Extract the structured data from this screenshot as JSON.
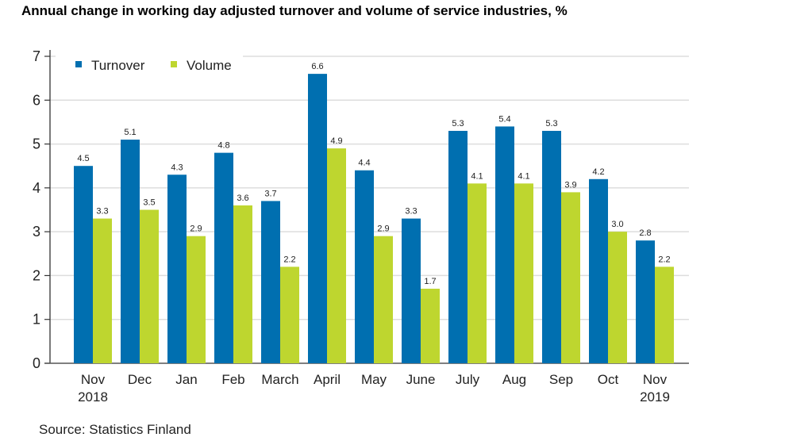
{
  "chart_data": {
    "type": "bar",
    "title": "Annual change in working day adjusted turnover and volume of service industries, %",
    "xlabel": "",
    "ylabel": "",
    "ylim": [
      0,
      7
    ],
    "yticks": [
      0,
      1,
      2,
      3,
      4,
      5,
      6,
      7
    ],
    "grid": true,
    "legend_position": "top-left",
    "categories": [
      [
        "Nov",
        "2018"
      ],
      [
        "Dec"
      ],
      [
        "Jan"
      ],
      [
        "Feb"
      ],
      [
        "March"
      ],
      [
        "April"
      ],
      [
        "May"
      ],
      [
        "June"
      ],
      [
        "July"
      ],
      [
        "Aug"
      ],
      [
        "Sep"
      ],
      [
        "Oct"
      ],
      [
        "Nov",
        "2019"
      ]
    ],
    "series": [
      {
        "name": "Turnover",
        "color": "#006fb0",
        "values": [
          4.5,
          5.1,
          4.3,
          4.8,
          3.7,
          6.6,
          4.4,
          3.3,
          5.3,
          5.4,
          5.3,
          4.2,
          2.8
        ],
        "labels": [
          "4.5",
          "5.1",
          "4.3",
          "4.8",
          "3.7",
          "6.6",
          "4.4",
          "3.3",
          "5.3",
          "5.4",
          "5.3",
          "4.2",
          "2.8"
        ]
      },
      {
        "name": "Volume",
        "color": "#bed62f",
        "values": [
          3.3,
          3.5,
          2.9,
          3.6,
          2.2,
          4.9,
          2.9,
          1.7,
          4.1,
          4.1,
          3.9,
          3.0,
          2.2
        ],
        "labels": [
          "3.3",
          "3.5",
          "2.9",
          "3.6",
          "2.2",
          "4.9",
          "2.9",
          "1.7",
          "4.1",
          "4.1",
          "3.9",
          "3.0",
          "2.2"
        ]
      }
    ],
    "source": "Source: Statistics Finland"
  }
}
